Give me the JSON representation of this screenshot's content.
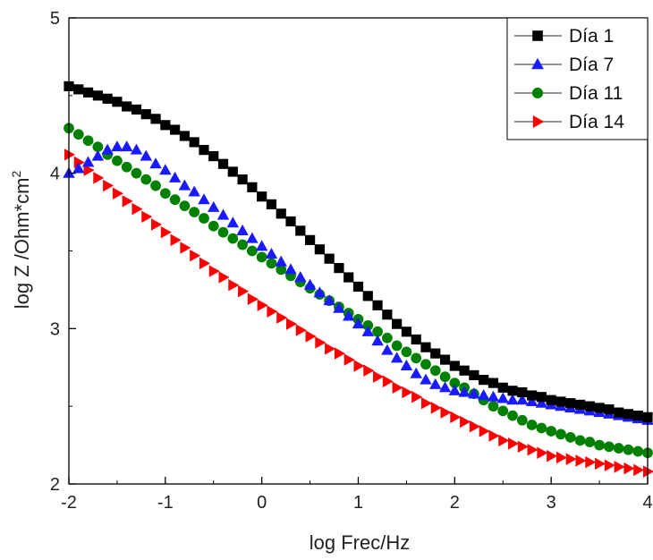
{
  "chart_data": {
    "type": "scatter",
    "xlabel": "log Frec/Hz",
    "ylabel_main": "log Z /Ohm*cm",
    "ylabel_sup": "2",
    "xlim": [
      -2,
      4
    ],
    "ylim": [
      2,
      5
    ],
    "xticks": [
      -2,
      -1,
      0,
      1,
      2,
      3,
      4
    ],
    "yticks": [
      2,
      3,
      4,
      5
    ],
    "grid": false,
    "legend_position": "top-right",
    "x": [
      -2.0,
      -1.9,
      -1.8,
      -1.7,
      -1.6,
      -1.5,
      -1.4,
      -1.3,
      -1.2,
      -1.1,
      -1.0,
      -0.9,
      -0.8,
      -0.7,
      -0.6,
      -0.5,
      -0.4,
      -0.3,
      -0.2,
      -0.1,
      0.0,
      0.1,
      0.2,
      0.3,
      0.4,
      0.5,
      0.6,
      0.7,
      0.8,
      0.9,
      1.0,
      1.1,
      1.2,
      1.3,
      1.4,
      1.5,
      1.6,
      1.7,
      1.8,
      1.9,
      2.0,
      2.1,
      2.2,
      2.3,
      2.4,
      2.5,
      2.6,
      2.7,
      2.8,
      2.9,
      3.0,
      3.1,
      3.2,
      3.3,
      3.4,
      3.5,
      3.6,
      3.7,
      3.8,
      3.9,
      4.0
    ],
    "series": [
      {
        "name": "Día 1",
        "color": "#000000",
        "marker": "square",
        "values": [
          4.56,
          4.54,
          4.52,
          4.5,
          4.48,
          4.46,
          4.43,
          4.41,
          4.38,
          4.35,
          4.31,
          4.28,
          4.24,
          4.2,
          4.15,
          4.11,
          4.06,
          4.01,
          3.96,
          3.91,
          3.85,
          3.8,
          3.74,
          3.69,
          3.63,
          3.57,
          3.51,
          3.45,
          3.39,
          3.33,
          3.27,
          3.21,
          3.15,
          3.09,
          3.03,
          2.98,
          2.93,
          2.88,
          2.84,
          2.8,
          2.76,
          2.73,
          2.7,
          2.67,
          2.65,
          2.62,
          2.6,
          2.59,
          2.57,
          2.56,
          2.54,
          2.53,
          2.52,
          2.51,
          2.5,
          2.49,
          2.48,
          2.46,
          2.45,
          2.44,
          2.43
        ]
      },
      {
        "name": "Día 7",
        "color": "#1a1aff",
        "marker": "triangle-up",
        "values": [
          4.0,
          4.03,
          4.07,
          4.11,
          4.15,
          4.17,
          4.17,
          4.15,
          4.11,
          4.06,
          4.02,
          3.97,
          3.92,
          3.88,
          3.83,
          3.78,
          3.73,
          3.68,
          3.63,
          3.58,
          3.53,
          3.48,
          3.43,
          3.38,
          3.33,
          3.28,
          3.23,
          3.18,
          3.13,
          3.08,
          3.03,
          2.98,
          2.92,
          2.86,
          2.81,
          2.76,
          2.71,
          2.67,
          2.64,
          2.62,
          2.6,
          2.59,
          2.58,
          2.57,
          2.56,
          2.55,
          2.54,
          2.54,
          2.53,
          2.52,
          2.51,
          2.5,
          2.49,
          2.48,
          2.47,
          2.46,
          2.45,
          2.44,
          2.43,
          2.42,
          2.41
        ]
      },
      {
        "name": "Día 11",
        "color": "#008000",
        "marker": "circle",
        "values": [
          4.29,
          4.25,
          4.21,
          4.17,
          4.12,
          4.08,
          4.04,
          4.0,
          3.96,
          3.92,
          3.87,
          3.83,
          3.79,
          3.75,
          3.71,
          3.66,
          3.62,
          3.58,
          3.54,
          3.5,
          3.46,
          3.42,
          3.38,
          3.34,
          3.3,
          3.26,
          3.22,
          3.18,
          3.14,
          3.1,
          3.06,
          3.02,
          2.98,
          2.94,
          2.89,
          2.85,
          2.81,
          2.77,
          2.73,
          2.69,
          2.65,
          2.62,
          2.58,
          2.54,
          2.5,
          2.47,
          2.44,
          2.41,
          2.38,
          2.36,
          2.34,
          2.32,
          2.3,
          2.28,
          2.27,
          2.25,
          2.24,
          2.23,
          2.22,
          2.21,
          2.2
        ]
      },
      {
        "name": "Día 14",
        "color": "#ff0000",
        "marker": "triangle-right",
        "values": [
          4.12,
          4.07,
          4.02,
          3.97,
          3.92,
          3.87,
          3.82,
          3.77,
          3.72,
          3.67,
          3.62,
          3.57,
          3.52,
          3.47,
          3.42,
          3.37,
          3.33,
          3.28,
          3.24,
          3.19,
          3.15,
          3.11,
          3.07,
          3.03,
          2.99,
          2.95,
          2.91,
          2.87,
          2.84,
          2.8,
          2.76,
          2.73,
          2.69,
          2.66,
          2.62,
          2.59,
          2.56,
          2.52,
          2.49,
          2.46,
          2.43,
          2.4,
          2.37,
          2.34,
          2.31,
          2.28,
          2.26,
          2.24,
          2.22,
          2.2,
          2.18,
          2.17,
          2.16,
          2.15,
          2.14,
          2.13,
          2.12,
          2.11,
          2.1,
          2.09,
          2.08
        ]
      }
    ]
  }
}
